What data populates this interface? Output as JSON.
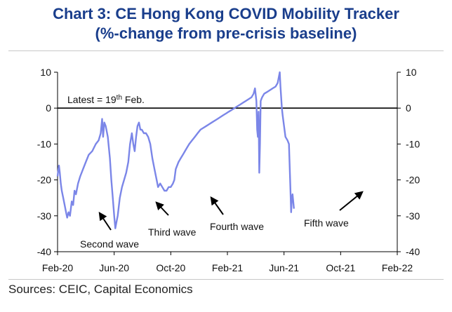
{
  "title_line1": "Chart 3: CE Hong Kong COVID Mobility Tracker",
  "title_line2": "(%-change from pre-crisis baseline)",
  "source": "Sources: CEIC, Capital Economics",
  "chart_data": {
    "type": "line",
    "ylabel": "",
    "xlabel": "",
    "ylim": [
      -40,
      10
    ],
    "yticks": [
      10,
      0,
      -10,
      -20,
      -30,
      -40
    ],
    "xticks": [
      "Feb-20",
      "Jun-20",
      "Oct-20",
      "Feb-21",
      "Jun-21",
      "Oct-21",
      "Feb-22"
    ],
    "latest_label": {
      "prefix": "Latest = 19",
      "sup": "th",
      "suffix": " Feb."
    },
    "annotations": [
      "Second wave",
      "Third wave",
      "Fourth wave",
      "Fifth wave"
    ],
    "series": [
      {
        "name": "CE Hong Kong COVID Mobility Tracker",
        "color": "#7b86e8",
        "points": [
          [
            0.0,
            -19
          ],
          [
            0.03,
            -18
          ],
          [
            0.06,
            -17
          ],
          [
            0.1,
            -16
          ],
          [
            0.16,
            -18
          ],
          [
            0.23,
            -21
          ],
          [
            0.3,
            -23
          ],
          [
            0.4,
            -25
          ],
          [
            0.5,
            -27
          ],
          [
            0.6,
            -29
          ],
          [
            0.68,
            -30.5
          ],
          [
            0.78,
            -29
          ],
          [
            0.88,
            -30
          ],
          [
            1.0,
            -26
          ],
          [
            1.1,
            -27
          ],
          [
            1.2,
            -23
          ],
          [
            1.3,
            -24
          ],
          [
            1.45,
            -21
          ],
          [
            1.6,
            -19
          ],
          [
            1.8,
            -17
          ],
          [
            2.0,
            -15
          ],
          [
            2.2,
            -13
          ],
          [
            2.45,
            -12
          ],
          [
            2.7,
            -10
          ],
          [
            2.9,
            -9
          ],
          [
            3.05,
            -7
          ],
          [
            3.15,
            -3
          ],
          [
            3.22,
            -8
          ],
          [
            3.3,
            -4
          ],
          [
            3.4,
            -5
          ],
          [
            3.55,
            -8
          ],
          [
            3.7,
            -14
          ],
          [
            3.8,
            -20
          ],
          [
            3.9,
            -25
          ],
          [
            4.0,
            -30
          ],
          [
            4.08,
            -33.5
          ],
          [
            4.15,
            -32
          ],
          [
            4.25,
            -30
          ],
          [
            4.4,
            -25
          ],
          [
            4.55,
            -22
          ],
          [
            4.7,
            -20
          ],
          [
            4.85,
            -18
          ],
          [
            5.0,
            -15
          ],
          [
            5.12,
            -10
          ],
          [
            5.25,
            -7
          ],
          [
            5.35,
            -10
          ],
          [
            5.45,
            -12
          ],
          [
            5.55,
            -8
          ],
          [
            5.65,
            -5
          ],
          [
            5.75,
            -4
          ],
          [
            5.85,
            -6
          ],
          [
            5.95,
            -6
          ],
          [
            6.1,
            -7
          ],
          [
            6.25,
            -7
          ],
          [
            6.4,
            -8
          ],
          [
            6.55,
            -10
          ],
          [
            6.7,
            -14
          ],
          [
            6.85,
            -17
          ],
          [
            7.0,
            -20
          ],
          [
            7.1,
            -22
          ],
          [
            7.25,
            -21
          ],
          [
            7.4,
            -22
          ],
          [
            7.55,
            -23
          ],
          [
            7.7,
            -23
          ],
          [
            7.85,
            -22
          ],
          [
            8.0,
            -22
          ],
          [
            8.15,
            -21
          ],
          [
            8.25,
            -20
          ],
          [
            8.35,
            -17
          ],
          [
            8.45,
            -16
          ],
          [
            8.55,
            -15
          ],
          [
            8.7,
            -14
          ],
          [
            8.85,
            -13
          ],
          [
            9.0,
            -12
          ],
          [
            9.15,
            -11
          ],
          [
            9.3,
            -10
          ],
          [
            9.5,
            -9
          ],
          [
            9.7,
            -8
          ],
          [
            9.9,
            -7
          ],
          [
            10.1,
            -6
          ],
          [
            10.3,
            -5.5
          ],
          [
            10.5,
            -5
          ],
          [
            10.7,
            -4.5
          ],
          [
            10.9,
            -4
          ],
          [
            11.1,
            -3.5
          ],
          [
            11.3,
            -3
          ],
          [
            11.5,
            -2.5
          ],
          [
            11.7,
            -2
          ],
          [
            11.9,
            -1.5
          ],
          [
            12.1,
            -1
          ],
          [
            12.3,
            -0.5
          ],
          [
            12.5,
            0
          ],
          [
            12.7,
            0.5
          ],
          [
            12.9,
            1
          ],
          [
            13.1,
            1.5
          ],
          [
            13.3,
            2
          ],
          [
            13.5,
            2.5
          ],
          [
            13.7,
            3
          ],
          [
            13.85,
            4
          ],
          [
            13.95,
            5.5
          ],
          [
            14.05,
            2
          ],
          [
            14.1,
            -6
          ],
          [
            14.15,
            -8
          ],
          [
            14.2,
            -1
          ],
          [
            14.25,
            -18
          ],
          [
            14.3,
            -10
          ],
          [
            14.35,
            2
          ],
          [
            14.45,
            3
          ],
          [
            14.6,
            4
          ],
          [
            14.8,
            4.5
          ],
          [
            15.0,
            5
          ],
          [
            15.2,
            5.5
          ],
          [
            15.4,
            6
          ],
          [
            15.55,
            7
          ],
          [
            15.65,
            9
          ],
          [
            15.7,
            10
          ],
          [
            15.75,
            6
          ],
          [
            15.8,
            3
          ],
          [
            15.85,
            0
          ],
          [
            15.9,
            -2
          ],
          [
            16.0,
            -5
          ],
          [
            16.1,
            -8
          ],
          [
            16.25,
            -9
          ],
          [
            16.35,
            -10
          ],
          [
            16.45,
            -22
          ],
          [
            16.5,
            -29
          ],
          [
            16.55,
            -25
          ],
          [
            16.6,
            -24
          ],
          [
            16.65,
            -26
          ],
          [
            16.7,
            -28
          ]
        ]
      }
    ]
  }
}
